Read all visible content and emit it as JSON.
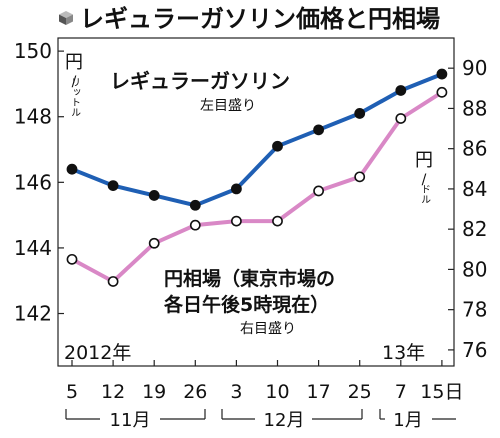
{
  "chart_data": {
    "type": "line",
    "title": "レギュラーガソリン価格と円相場",
    "categories": [
      "5",
      "12",
      "19",
      "26",
      "3",
      "10",
      "17",
      "25",
      "7",
      "15日"
    ],
    "month_labels": [
      "11月",
      "12月",
      "1月"
    ],
    "year_labels": [
      "2012年",
      "13年"
    ],
    "left_axis": {
      "unit_label": [
        "円",
        "/",
        "リットル"
      ],
      "ylim": [
        142,
        150
      ],
      "ticks": [
        "142",
        "144",
        "146",
        "148",
        "150"
      ]
    },
    "right_axis": {
      "unit_label": [
        "円",
        "/",
        "ドル"
      ],
      "ylim": [
        76,
        92
      ],
      "ticks": [
        "76",
        "78",
        "80",
        "82",
        "84",
        "86",
        "88",
        "90"
      ]
    },
    "series": [
      {
        "name": "レギュラーガソリン",
        "note": "左目盛り",
        "axis": "left",
        "color": "#1f5fb4",
        "values": [
          146.4,
          145.9,
          145.6,
          145.3,
          145.8,
          147.1,
          147.6,
          148.1,
          148.8,
          149.3
        ]
      },
      {
        "name": "円相場（東京市場の各日午後5時現在）",
        "name_lines": [
          "円相場（東京市場の",
          "各日午後5時現在）"
        ],
        "note": "右目盛り",
        "axis": "right",
        "color": "#d988c6",
        "values": [
          80.5,
          79.4,
          81.3,
          82.2,
          82.4,
          82.4,
          83.9,
          84.6,
          87.5,
          88.8
        ]
      }
    ]
  }
}
